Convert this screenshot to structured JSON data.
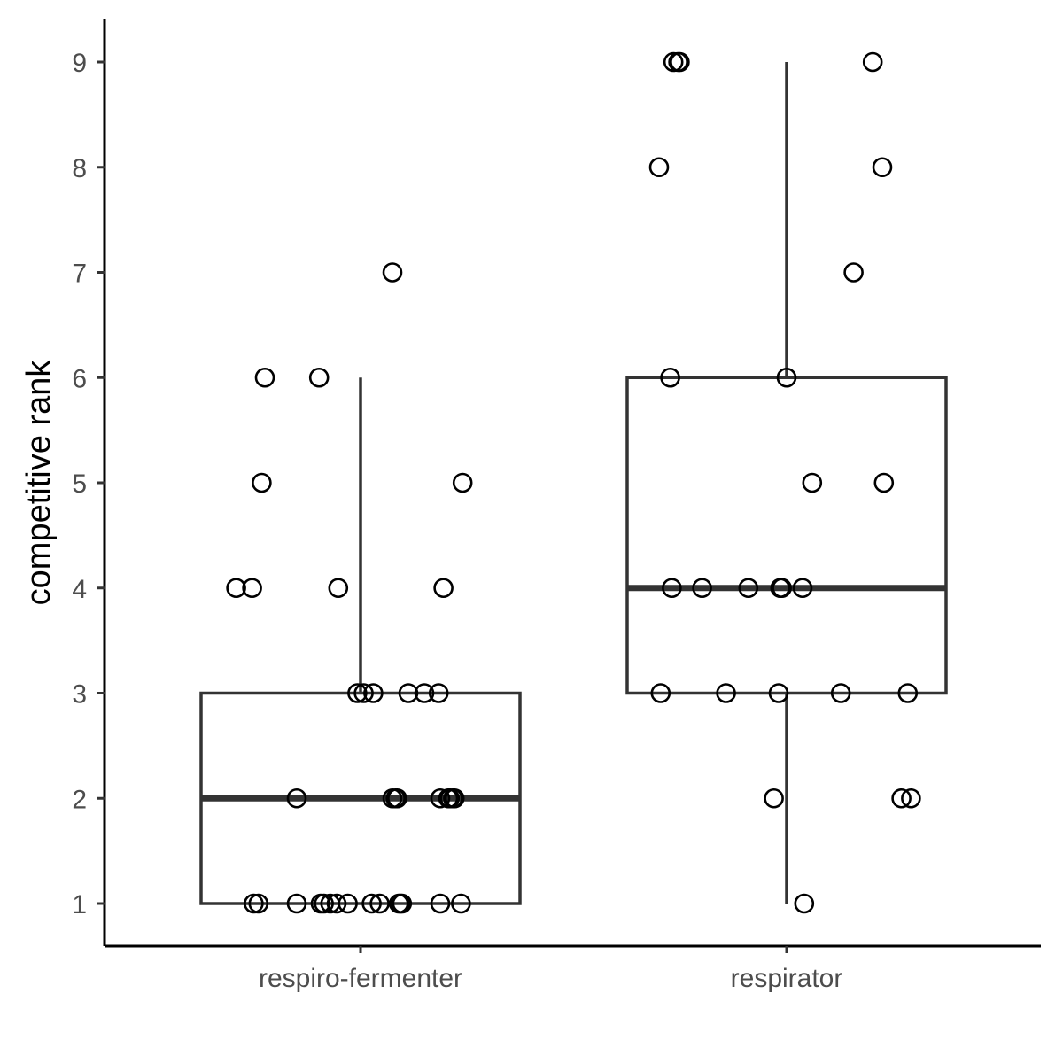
{
  "chart_data": {
    "type": "boxplot",
    "xlabel": "",
    "ylabel": "competitive rank",
    "ylim": [
      0.6,
      9.4
    ],
    "yticks": [
      1,
      2,
      3,
      4,
      5,
      6,
      7,
      8,
      9
    ],
    "grid": false,
    "legend": "none",
    "categories": [
      "respiro-fermenter",
      "respirator"
    ],
    "boxes": [
      {
        "category": "respiro-fermenter",
        "min": 1,
        "q1": 1,
        "median": 2,
        "q3": 3,
        "max": 6
      },
      {
        "category": "respirator",
        "min": 1,
        "q1": 3,
        "median": 4,
        "q3": 6,
        "max": 9
      }
    ],
    "points": [
      {
        "category": "respiro-fermenter",
        "jitter": [
          -0.67,
          -0.64,
          -0.4,
          -0.25,
          -0.23,
          -0.19,
          -0.15,
          -0.08,
          0.07,
          0.12,
          0.24,
          0.25,
          0.26,
          0.5,
          0.63
        ],
        "values": [
          1,
          1,
          1,
          1,
          1,
          1,
          1,
          1,
          1,
          1,
          1,
          1,
          1,
          1,
          1
        ]
      },
      {
        "category": "respiro-fermenter",
        "jitter": [
          -0.4,
          0.2,
          0.22,
          0.23,
          0.5,
          0.55,
          0.56,
          0.58,
          0.59
        ],
        "values": [
          2,
          2,
          2,
          2,
          2,
          2,
          2,
          2,
          2
        ]
      },
      {
        "category": "respiro-fermenter",
        "jitter": [
          -0.02,
          0.02,
          0.08,
          0.3,
          0.4,
          0.49
        ],
        "values": [
          3,
          3,
          3,
          3,
          3,
          3
        ]
      },
      {
        "category": "respiro-fermenter",
        "jitter": [
          -0.78,
          -0.68,
          -0.14,
          0.52
        ],
        "values": [
          4,
          4,
          4,
          4
        ]
      },
      {
        "category": "respiro-fermenter",
        "jitter": [
          -0.62,
          0.64
        ],
        "values": [
          5,
          5
        ]
      },
      {
        "category": "respiro-fermenter",
        "jitter": [
          -0.6,
          -0.26
        ],
        "values": [
          6,
          6
        ]
      },
      {
        "category": "respiro-fermenter",
        "jitter": [
          0.2
        ],
        "values": [
          7
        ]
      },
      {
        "category": "respirator",
        "jitter": [
          -0.79,
          -0.38,
          -0.05,
          0.34,
          0.76
        ],
        "values": [
          3,
          3,
          3,
          3,
          3
        ]
      },
      {
        "category": "respirator",
        "jitter": [
          -0.08,
          0.72,
          0.78
        ],
        "values": [
          2,
          2,
          2
        ]
      },
      {
        "category": "respirator",
        "jitter": [
          0.11
        ],
        "values": [
          1
        ]
      },
      {
        "category": "respirator",
        "jitter": [
          -0.72,
          -0.53,
          -0.24,
          -0.04,
          -0.03,
          0.1
        ],
        "values": [
          4,
          4,
          4,
          4,
          4,
          4
        ]
      },
      {
        "category": "respirator",
        "jitter": [
          0.16,
          0.61
        ],
        "values": [
          5,
          5
        ]
      },
      {
        "category": "respirator",
        "jitter": [
          -0.73,
          0.0
        ],
        "values": [
          6,
          6
        ]
      },
      {
        "category": "respirator",
        "jitter": [
          0.42
        ],
        "values": [
          7
        ]
      },
      {
        "category": "respirator",
        "jitter": [
          -0.8,
          0.6
        ],
        "values": [
          8,
          8
        ]
      },
      {
        "category": "respirator",
        "jitter": [
          -0.71,
          -0.68,
          -0.67,
          0.54
        ],
        "values": [
          9,
          9,
          9,
          9
        ]
      }
    ]
  }
}
